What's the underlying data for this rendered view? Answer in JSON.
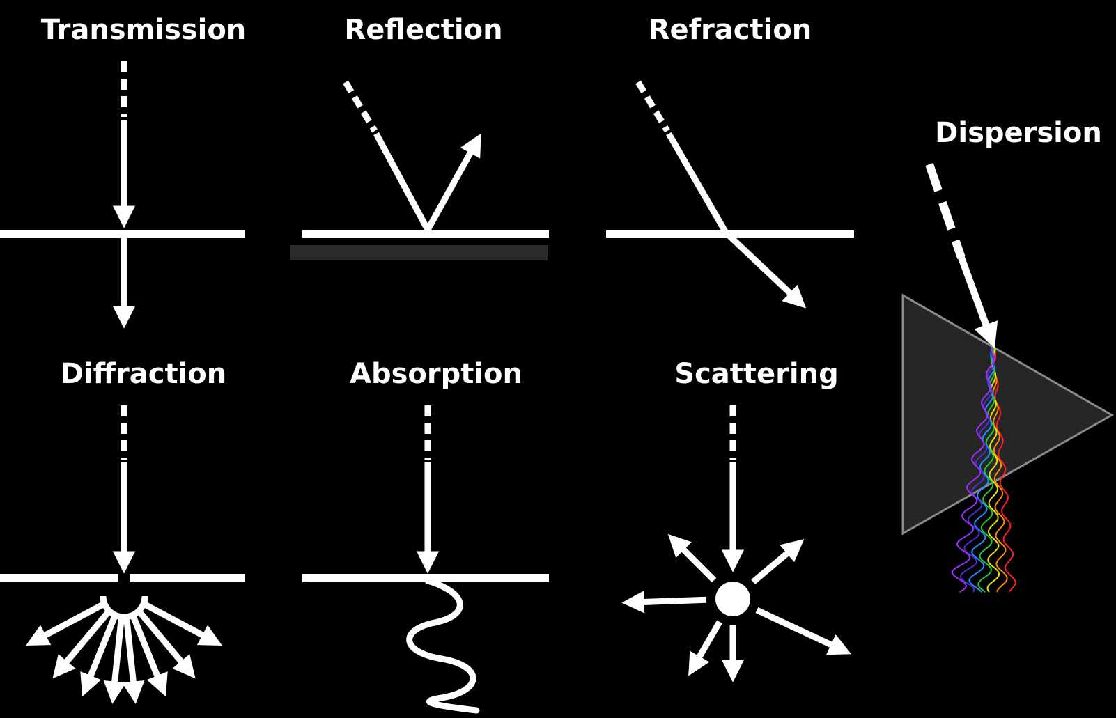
{
  "labels": {
    "transmission": "Transmission",
    "reflection": "Reflection",
    "refraction": "Refraction",
    "dispersion": "Dispersion",
    "diffraction": "Diffraction",
    "absorption": "Absorption",
    "scattering": "Scattering"
  },
  "colors": {
    "background": "#000000",
    "foreground": "#ffffff",
    "prism_fill": "#262626",
    "prism_stroke": "#8a8a8a",
    "spectrum": [
      "#ff2020",
      "#ff8c00",
      "#e6e600",
      "#22cc22",
      "#1e90ff",
      "#4b2fd0",
      "#9b30ff"
    ]
  }
}
